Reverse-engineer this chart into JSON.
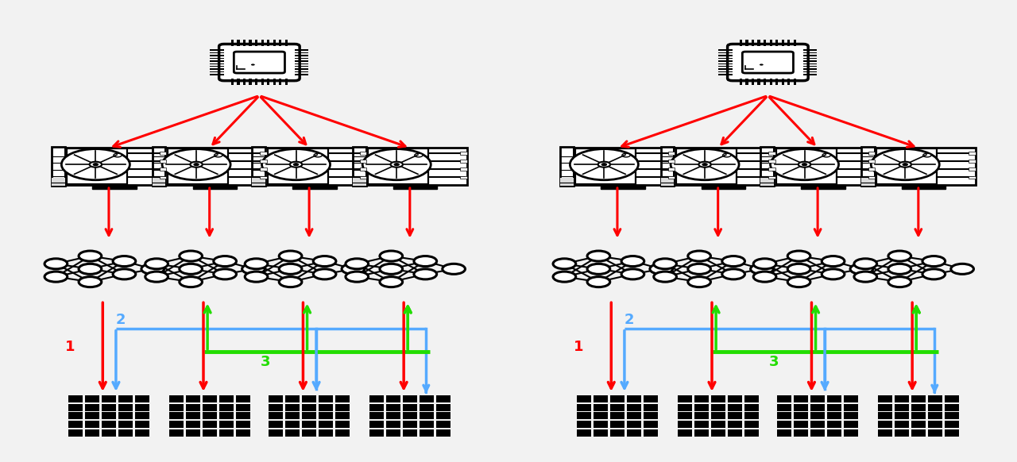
{
  "background_color": "#f2f2f2",
  "fig_width": 12.8,
  "fig_height": 5.82,
  "group_centers": [
    0.255,
    0.755
  ],
  "gpu_offsets": [
    -0.148,
    -0.049,
    0.049,
    0.148
  ],
  "row_y": {
    "cpu": 0.865,
    "gpu": 0.64,
    "nn": 0.415,
    "data": 0.1
  },
  "arrow_red": "#ff0000",
  "arrow_blue": "#55aaff",
  "arrow_green": "#22dd00",
  "label_1_color": "#ff0000",
  "label_2_color": "#55aaff",
  "label_3_color": "#22dd00"
}
